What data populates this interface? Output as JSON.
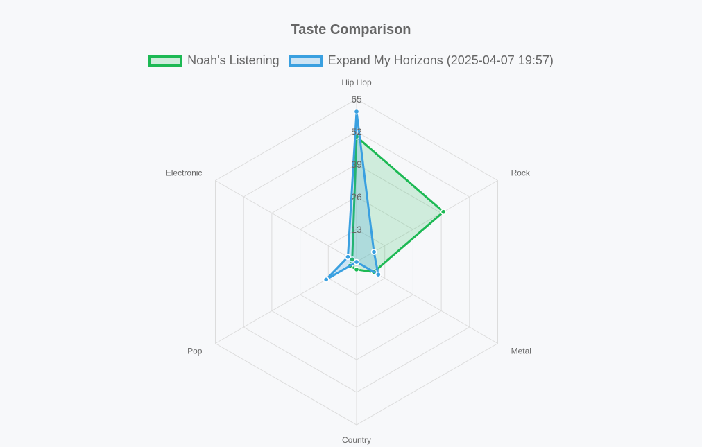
{
  "chart_data": {
    "type": "radar",
    "title": "Taste Comparison",
    "axes": [
      "Hip Hop",
      "Rock",
      "Metal",
      "Country",
      "Pop",
      "Electronic"
    ],
    "range": [
      0,
      65
    ],
    "ticks": [
      "13",
      "26",
      "39",
      "52",
      "65"
    ],
    "grid": true,
    "legend_position": "top",
    "series": [
      {
        "name": "Noah's Listening",
        "values": [
          50,
          40,
          8,
          3,
          3,
          2
        ],
        "color": "#1db954",
        "fill": "rgba(29,185,84,0.18)"
      },
      {
        "name": "Expand My Horizons (2025-04-07 19:57)",
        "values": [
          60,
          8,
          10,
          0,
          14,
          4
        ],
        "color": "#3aa0e0",
        "fill": "rgba(58,160,224,0.22)"
      }
    ]
  }
}
